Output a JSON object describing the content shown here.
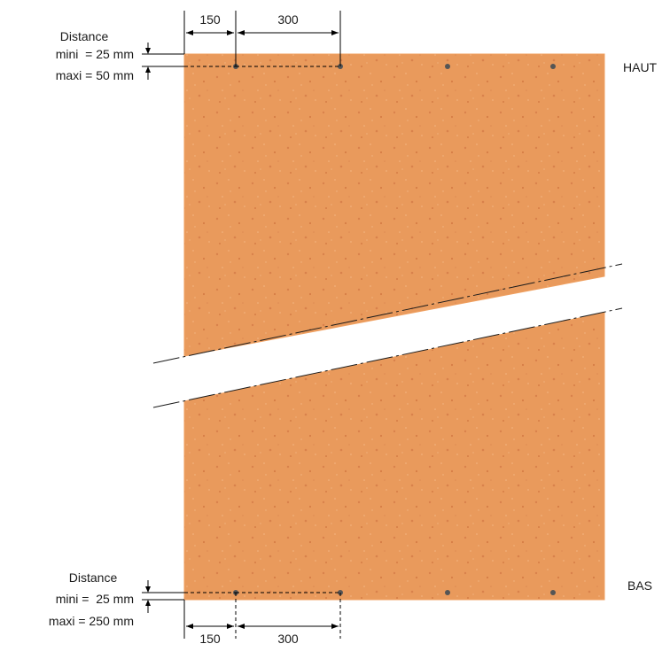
{
  "labels": {
    "top": "HAUT",
    "bottom": "BAS"
  },
  "top_dimension": {
    "title": "Distance",
    "mini": "mini  = 25 mm",
    "maxi": "maxi = 50 mm",
    "spacing_1": "150",
    "spacing_2": "300"
  },
  "bottom_dimension": {
    "title": "Distance",
    "mini": "mini =  25 mm",
    "maxi": "maxi = 250 mm",
    "spacing_1": "150",
    "spacing_2": "300"
  },
  "colors": {
    "panel": "#e9995a",
    "panel_edge": "#f0a060",
    "speckle": "#d9804a",
    "fastener": "#555555"
  }
}
